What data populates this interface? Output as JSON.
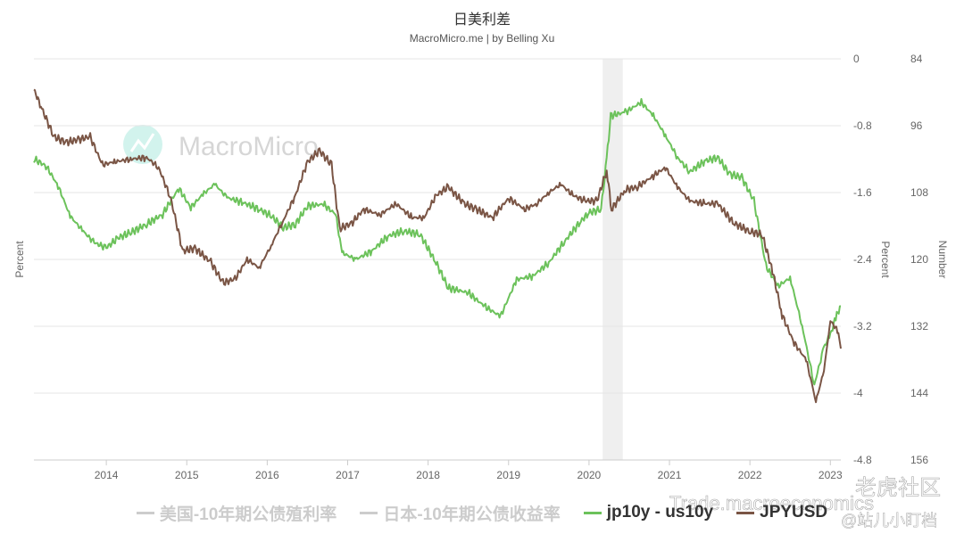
{
  "chart_data": {
    "type": "line",
    "title": "日美利差",
    "subtitle": "MacroMicro.me | by Belling Xu",
    "watermark": "MacroMicro",
    "left_axis_label": "Percent",
    "right_axis_labels": [
      "Percent",
      "Number"
    ],
    "x_ticks": [
      "2014",
      "2015",
      "2016",
      "2017",
      "2018",
      "2019",
      "2020",
      "2021",
      "2022",
      "2023"
    ],
    "y_range_percent": [
      -4.8,
      0
    ],
    "y_ticks_percent": [
      "0",
      "-0.8",
      "-1.6",
      "-2.4",
      "-3.2",
      "-4",
      "-4.8"
    ],
    "y_range_number": [
      84,
      156
    ],
    "y_ticks_number": [
      "84",
      "96",
      "108",
      "120",
      "132",
      "144",
      "156"
    ],
    "x_range": [
      2013.1,
      2023.13
    ],
    "grid": true,
    "legend_position": "bottom",
    "shaded_region": [
      2020.17,
      2020.42
    ],
    "series": [
      {
        "name": "jp10y - us10y",
        "axis": "percent",
        "color": "#6cc25b",
        "points": [
          [
            2013.1,
            -1.2
          ],
          [
            2013.25,
            -1.28
          ],
          [
            2013.4,
            -1.52
          ],
          [
            2013.55,
            -1.88
          ],
          [
            2013.7,
            -2.05
          ],
          [
            2013.85,
            -2.2
          ],
          [
            2014.0,
            -2.26
          ],
          [
            2014.15,
            -2.14
          ],
          [
            2014.3,
            -2.08
          ],
          [
            2014.5,
            -1.98
          ],
          [
            2014.7,
            -1.86
          ],
          [
            2014.9,
            -1.55
          ],
          [
            2015.05,
            -1.78
          ],
          [
            2015.2,
            -1.62
          ],
          [
            2015.35,
            -1.5
          ],
          [
            2015.5,
            -1.66
          ],
          [
            2015.7,
            -1.72
          ],
          [
            2015.9,
            -1.8
          ],
          [
            2016.05,
            -1.88
          ],
          [
            2016.2,
            -2.02
          ],
          [
            2016.35,
            -1.98
          ],
          [
            2016.5,
            -1.76
          ],
          [
            2016.7,
            -1.74
          ],
          [
            2016.85,
            -1.86
          ],
          [
            2016.93,
            -2.32
          ],
          [
            2017.1,
            -2.4
          ],
          [
            2017.3,
            -2.3
          ],
          [
            2017.5,
            -2.12
          ],
          [
            2017.7,
            -2.06
          ],
          [
            2017.9,
            -2.1
          ],
          [
            2018.1,
            -2.44
          ],
          [
            2018.25,
            -2.74
          ],
          [
            2018.5,
            -2.8
          ],
          [
            2018.7,
            -2.96
          ],
          [
            2018.9,
            -3.08
          ],
          [
            2019.1,
            -2.64
          ],
          [
            2019.3,
            -2.6
          ],
          [
            2019.5,
            -2.44
          ],
          [
            2019.7,
            -2.18
          ],
          [
            2019.9,
            -1.94
          ],
          [
            2020.0,
            -1.84
          ],
          [
            2020.15,
            -1.8
          ],
          [
            2020.22,
            -1.2
          ],
          [
            2020.27,
            -0.68
          ],
          [
            2020.45,
            -0.64
          ],
          [
            2020.65,
            -0.52
          ],
          [
            2020.8,
            -0.68
          ],
          [
            2020.95,
            -0.92
          ],
          [
            2021.1,
            -1.18
          ],
          [
            2021.25,
            -1.35
          ],
          [
            2021.45,
            -1.22
          ],
          [
            2021.6,
            -1.18
          ],
          [
            2021.75,
            -1.38
          ],
          [
            2021.9,
            -1.42
          ],
          [
            2022.05,
            -1.7
          ],
          [
            2022.2,
            -2.48
          ],
          [
            2022.35,
            -2.72
          ],
          [
            2022.5,
            -2.62
          ],
          [
            2022.65,
            -3.2
          ],
          [
            2022.8,
            -3.9
          ],
          [
            2022.92,
            -3.45
          ],
          [
            2023.0,
            -3.3
          ],
          [
            2023.08,
            -3.06
          ],
          [
            2023.13,
            -2.96
          ]
        ]
      },
      {
        "name": "JPYUSD",
        "axis": "number",
        "color": "#7a5545",
        "points": [
          [
            2013.1,
            89.5
          ],
          [
            2013.2,
            93
          ],
          [
            2013.35,
            98
          ],
          [
            2013.5,
            99
          ],
          [
            2013.65,
            98.5
          ],
          [
            2013.8,
            98
          ],
          [
            2013.95,
            103
          ],
          [
            2014.1,
            102.5
          ],
          [
            2014.3,
            102
          ],
          [
            2014.5,
            101.7
          ],
          [
            2014.65,
            103.5
          ],
          [
            2014.8,
            109
          ],
          [
            2014.95,
            118.5
          ],
          [
            2015.1,
            118
          ],
          [
            2015.3,
            120.5
          ],
          [
            2015.45,
            124.2
          ],
          [
            2015.6,
            123.5
          ],
          [
            2015.75,
            120
          ],
          [
            2015.9,
            121.5
          ],
          [
            2016.05,
            117.5
          ],
          [
            2016.2,
            113
          ],
          [
            2016.35,
            108.5
          ],
          [
            2016.5,
            102.5
          ],
          [
            2016.65,
            100.5
          ],
          [
            2016.8,
            103
          ],
          [
            2016.9,
            114.5
          ],
          [
            2017.05,
            113.5
          ],
          [
            2017.2,
            111
          ],
          [
            2017.4,
            112
          ],
          [
            2017.6,
            110
          ],
          [
            2017.8,
            112.5
          ],
          [
            2017.95,
            112.5
          ],
          [
            2018.1,
            108.5
          ],
          [
            2018.25,
            107
          ],
          [
            2018.45,
            110
          ],
          [
            2018.6,
            111
          ],
          [
            2018.8,
            112.5
          ],
          [
            2019.0,
            109
          ],
          [
            2019.2,
            111
          ],
          [
            2019.35,
            110
          ],
          [
            2019.5,
            108
          ],
          [
            2019.65,
            106.5
          ],
          [
            2019.8,
            108.5
          ],
          [
            2019.95,
            109.5
          ],
          [
            2020.1,
            109.5
          ],
          [
            2020.22,
            104
          ],
          [
            2020.28,
            111
          ],
          [
            2020.45,
            107.5
          ],
          [
            2020.6,
            107
          ],
          [
            2020.8,
            105
          ],
          [
            2020.95,
            103.5
          ],
          [
            2021.1,
            107
          ],
          [
            2021.25,
            109.5
          ],
          [
            2021.45,
            110
          ],
          [
            2021.6,
            110
          ],
          [
            2021.8,
            113.5
          ],
          [
            2022.0,
            115
          ],
          [
            2022.15,
            115.5
          ],
          [
            2022.28,
            122
          ],
          [
            2022.4,
            130
          ],
          [
            2022.55,
            135
          ],
          [
            2022.7,
            138
          ],
          [
            2022.82,
            145.5
          ],
          [
            2022.92,
            140
          ],
          [
            2023.0,
            131
          ],
          [
            2023.1,
            133
          ],
          [
            2023.13,
            136
          ]
        ]
      },
      {
        "name": "美国-10年期公债殖利率",
        "axis": "percent",
        "visible": false
      },
      {
        "name": "日本-10年期公债收益率",
        "axis": "percent",
        "visible": false
      }
    ]
  },
  "overlay_watermark": {
    "trade_text": "Trade.macroeconomics",
    "wechat_text": "老虎社区",
    "handle_text": "@站儿小盯档"
  },
  "colors": {
    "grid": "#e6e6e6",
    "axis_text": "#666666",
    "shade": "#efefef"
  }
}
